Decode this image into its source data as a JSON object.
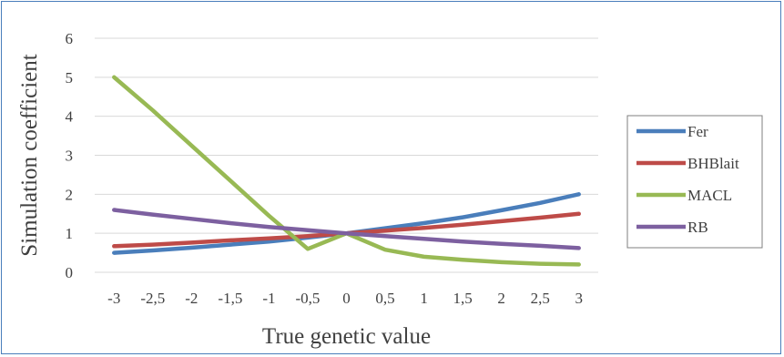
{
  "chart_data": {
    "type": "line",
    "title": "",
    "xlabel": "True genetic value",
    "ylabel": "Simulation coefficient",
    "categories": [
      "-3",
      "-2,5",
      "-2",
      "-1,5",
      "-1",
      "-0,5",
      "0",
      "0,5",
      "1",
      "1,5",
      "2",
      "2,5",
      "3"
    ],
    "ylim": [
      0,
      6
    ],
    "yticks": [
      "0",
      "1",
      "2",
      "3",
      "4",
      "5",
      "6"
    ],
    "grid": "horizontal",
    "legend_position": "right",
    "series": [
      {
        "name": "Fer",
        "color": "#4a7ebb",
        "values": [
          0.5,
          0.56,
          0.63,
          0.71,
          0.79,
          0.89,
          1.0,
          1.13,
          1.26,
          1.41,
          1.59,
          1.78,
          2.0
        ]
      },
      {
        "name": "BHBlait",
        "color": "#be4b48",
        "values": [
          0.67,
          0.71,
          0.76,
          0.82,
          0.87,
          0.93,
          1.0,
          1.07,
          1.14,
          1.22,
          1.31,
          1.4,
          1.5
        ]
      },
      {
        "name": "MACL",
        "color": "#98b954",
        "values": [
          5.0,
          4.15,
          3.25,
          2.35,
          1.45,
          0.6,
          1.0,
          0.58,
          0.4,
          0.32,
          0.26,
          0.22,
          0.2
        ]
      },
      {
        "name": "RB",
        "color": "#7d60a0",
        "values": [
          1.6,
          1.48,
          1.37,
          1.26,
          1.16,
          1.08,
          1.0,
          0.93,
          0.86,
          0.79,
          0.73,
          0.68,
          0.62
        ]
      }
    ]
  }
}
